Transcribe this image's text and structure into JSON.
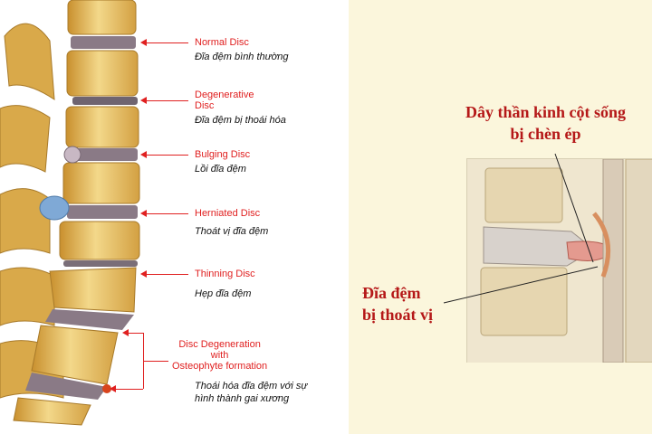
{
  "left_diagram": {
    "labels": [
      {
        "en": "Normal Disc",
        "vi": "Đĩa đệm bình thường"
      },
      {
        "en": "Degenerative\nDisc",
        "vi": "Đĩa đệm bị thoái hóa"
      },
      {
        "en": "Bulging Disc",
        "vi": "Lồi đĩa đệm"
      },
      {
        "en": "Herniated Disc",
        "vi": "Thoát vị đĩa đệm"
      },
      {
        "en": "Thinning Disc",
        "vi": "Hẹp đĩa đệm"
      },
      {
        "en": "Disc Degeneration\nwith\nOsteophyte formation",
        "vi": "Thoái hóa đĩa đệm với sự\nhình thành gai xương"
      }
    ]
  },
  "right_diagram": {
    "nerve_label": "Dây thần kinh cột sống\nbị chèn ép",
    "disc_label": "Đĩa đệm\nbị thoát vị"
  },
  "colors": {
    "label_red": "#e02020",
    "serif_red": "#b51818",
    "bone": "#e8c46a",
    "disc": "#8a7a86"
  }
}
